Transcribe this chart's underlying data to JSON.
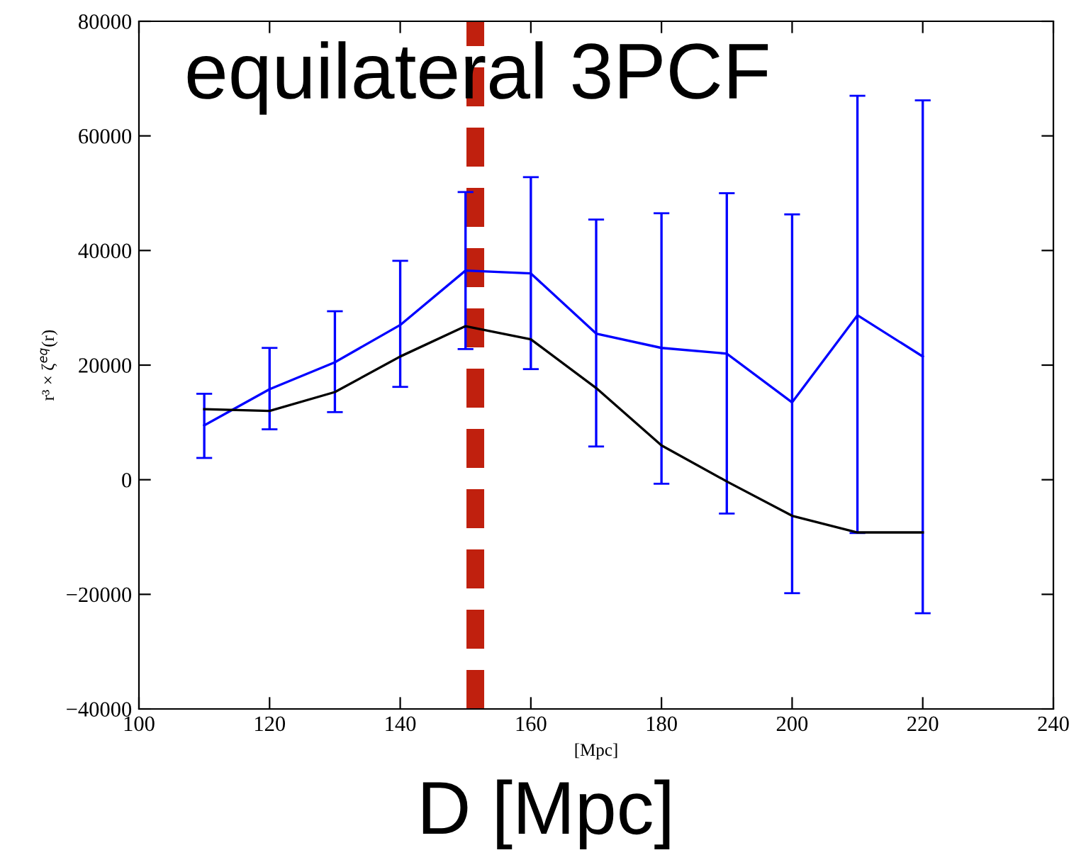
{
  "chart_data": {
    "type": "line",
    "title": "equilateral 3PCF",
    "xlabel": "[Mpc]",
    "ylabel": "r³ × ζ$^{eq}$(r)",
    "annotations": [
      "D [Mpc]"
    ],
    "x": [
      110,
      120,
      130,
      140,
      150,
      160,
      170,
      180,
      190,
      200,
      210,
      220
    ],
    "series": [
      {
        "color": "#0000ff",
        "values": [
          9500,
          15800,
          20500,
          27000,
          36500,
          36000,
          25500,
          23000,
          22000,
          13500,
          28700,
          21500
        ],
        "errors": [
          [
            3800,
            15000
          ],
          [
            8800,
            23000
          ],
          [
            11800,
            29400
          ],
          [
            16200,
            38200
          ],
          [
            22800,
            50200
          ],
          [
            19300,
            52800
          ],
          [
            5800,
            45400
          ],
          [
            -700,
            46500
          ],
          [
            -5900,
            50000
          ],
          [
            -19800,
            46300
          ],
          [
            -9300,
            67000
          ],
          [
            -23300,
            66200
          ]
        ]
      },
      {
        "color": "#000000",
        "values": [
          12300,
          12000,
          15300,
          21500,
          26800,
          24500,
          16000,
          6000,
          -300,
          -6300,
          -9200,
          -9200
        ]
      }
    ],
    "ref_lines": [
      {
        "axis": "x",
        "value": 151.5,
        "color": "#c0200e",
        "line_style": "dashed"
      }
    ],
    "xlim": [
      100,
      240
    ],
    "xticks": [
      100,
      120,
      140,
      160,
      180,
      200,
      220,
      240
    ],
    "ylim": [
      -40000,
      80000
    ],
    "yticks": [
      -40000,
      -20000,
      0,
      20000,
      40000,
      60000,
      80000
    ],
    "grid": false,
    "legend": false,
    "marker": "none",
    "line_style": "solid"
  }
}
